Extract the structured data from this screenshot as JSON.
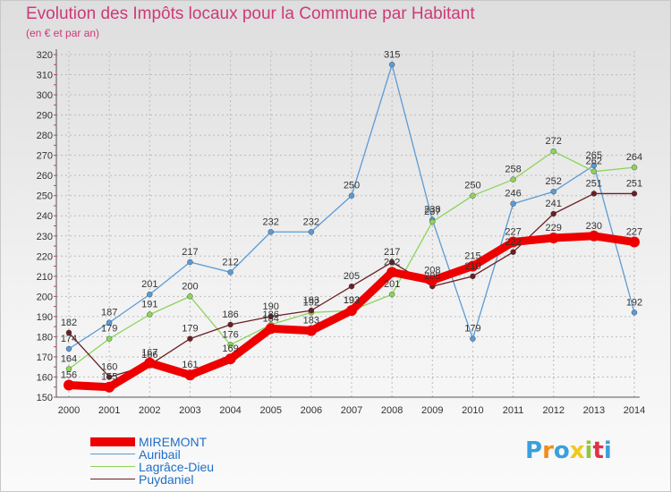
{
  "title": "Evolution des Impôts locaux pour la Commune par Habitant",
  "subtitle": "(en € et par an)",
  "logo_text": "Proxiti",
  "colors": {
    "title": "#cc3a78",
    "legend_text": "#1e6ec8",
    "axis_text": "#333333",
    "grid": "#bbbbbb"
  },
  "chart_data": {
    "type": "line",
    "title": "Evolution des Impôts locaux pour la Commune par Habitant",
    "subtitle": "(en € et par an)",
    "xlabel": "",
    "ylabel": "",
    "categories": [
      "2000",
      "2001",
      "2002",
      "2003",
      "2004",
      "2005",
      "2006",
      "2007",
      "2008",
      "2009",
      "2010",
      "2011",
      "2012",
      "2013",
      "2014"
    ],
    "ylim": [
      150,
      320
    ],
    "yticks": [
      150,
      160,
      170,
      180,
      190,
      200,
      210,
      220,
      230,
      240,
      250,
      260,
      270,
      280,
      290,
      300,
      310,
      320
    ],
    "grid": true,
    "legend_position": "bottom-left",
    "series": [
      {
        "name": "MIREMONT",
        "color": "#ee0000",
        "values": [
          156,
          155,
          167,
          161,
          169,
          184,
          183,
          193,
          212,
          208,
          215,
          227,
          229,
          230,
          227
        ]
      },
      {
        "name": "Auribail",
        "color": "#5b9bd5",
        "values": [
          174,
          187,
          201,
          217,
          212,
          232,
          232,
          250,
          315,
          238,
          179,
          246,
          252,
          265,
          192
        ]
      },
      {
        "name": "Lagrâce-Dieu",
        "color": "#8cd45a",
        "values": [
          164,
          179,
          191,
          200,
          176,
          186,
          192,
          193,
          201,
          237,
          250,
          258,
          272,
          262,
          264
        ]
      },
      {
        "name": "Puydaniel",
        "color": "#6b1f24",
        "values": [
          182,
          160,
          166,
          179,
          186,
          190,
          193,
          205,
          217,
          205,
          210,
          222,
          241,
          251,
          251
        ]
      }
    ]
  }
}
